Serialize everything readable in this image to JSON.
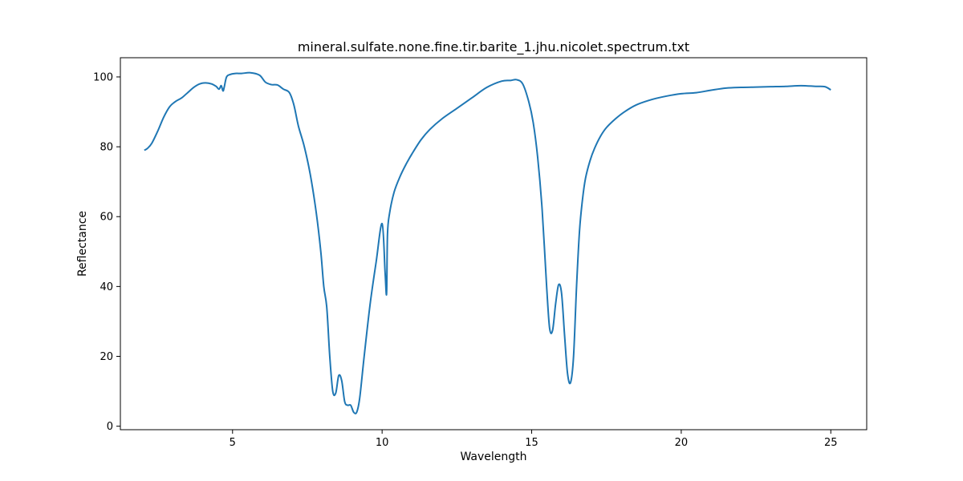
{
  "chart_data": {
    "type": "line",
    "title": "mineral.sulfate.none.fine.tir.barite_1.jhu.nicolet.spectrum.txt",
    "xlabel": "Wavelength",
    "ylabel": "Reflectance",
    "xlim": [
      1.25,
      26.2
    ],
    "ylim": [
      -1,
      105.5
    ],
    "xticks": [
      5,
      10,
      15,
      20,
      25
    ],
    "yticks": [
      0,
      20,
      40,
      60,
      80,
      100
    ],
    "grid": false,
    "legend": "none",
    "line_color": "#1f77b4",
    "series": [
      {
        "x": [
          2.05,
          2.15,
          2.3,
          2.5,
          2.7,
          2.9,
          3.1,
          3.3,
          3.5,
          3.7,
          3.9,
          4.1,
          4.3,
          4.45,
          4.55,
          4.62,
          4.68,
          4.72,
          4.8,
          4.92,
          5.1,
          5.3,
          5.6,
          5.9,
          6.1,
          6.3,
          6.5,
          6.7,
          6.9,
          7.05,
          7.2,
          7.4,
          7.6,
          7.8,
          7.95,
          8.05,
          8.15,
          8.25,
          8.35,
          8.45,
          8.55,
          8.65,
          8.75,
          8.85,
          8.95,
          9.05,
          9.15,
          9.25,
          9.4,
          9.6,
          9.8,
          10.0,
          10.1,
          10.15,
          10.18,
          10.25,
          10.4,
          10.6,
          10.8,
          11.0,
          11.3,
          11.6,
          12.0,
          12.5,
          13.0,
          13.5,
          14.0,
          14.3,
          14.5,
          14.7,
          14.9,
          15.05,
          15.2,
          15.35,
          15.5,
          15.6,
          15.7,
          15.8,
          15.9,
          16.0,
          16.1,
          16.2,
          16.3,
          16.4,
          16.5,
          16.6,
          16.7,
          16.8,
          16.95,
          17.1,
          17.3,
          17.5,
          17.8,
          18.1,
          18.5,
          19.0,
          19.5,
          20.0,
          20.5,
          21.0,
          21.5,
          22.0,
          22.5,
          23.0,
          23.5,
          24.0,
          24.5,
          24.8,
          25.0
        ],
        "y": [
          79,
          79.5,
          81,
          84.5,
          88.5,
          91.5,
          93,
          94,
          95.5,
          97,
          98,
          98.3,
          98,
          97.3,
          96.5,
          97.5,
          96,
          97,
          100,
          100.7,
          101,
          101,
          101.2,
          100.5,
          98.5,
          97.8,
          97.7,
          96.5,
          95.5,
          92,
          86,
          80,
          72,
          61,
          50,
          40,
          34,
          20,
          10,
          9.5,
          14.5,
          13,
          7,
          6,
          6,
          4,
          4,
          8,
          20,
          35,
          47,
          58,
          44,
          38,
          55,
          61,
          67,
          71.5,
          75,
          78,
          82,
          85,
          88,
          91,
          94,
          97,
          98.8,
          99,
          99.2,
          98,
          93,
          87,
          77,
          62,
          40,
          28,
          27.5,
          35,
          40.5,
          38,
          26,
          15,
          12.5,
          20,
          40,
          56,
          65,
          71,
          76,
          79.5,
          83,
          85.5,
          88,
          90,
          92,
          93.5,
          94.5,
          95.2,
          95.5,
          96.2,
          96.8,
          97,
          97.1,
          97.2,
          97.3,
          97.5,
          97.3,
          97.2,
          96.3
        ]
      }
    ]
  }
}
